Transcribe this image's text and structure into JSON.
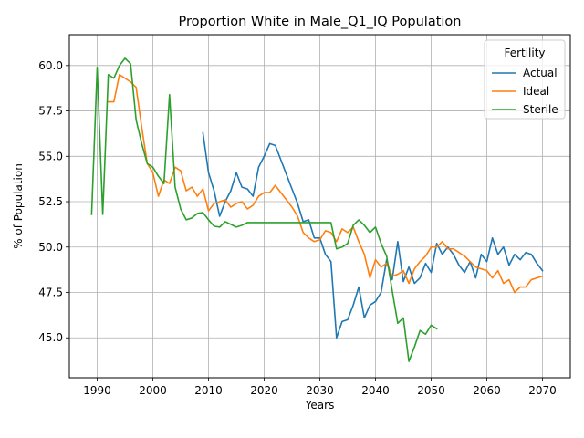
{
  "chart_data": {
    "type": "line",
    "title": "Proportion White in Male_Q1_IQ Population",
    "xlabel": "Years",
    "ylabel": "% of Population",
    "xlim": [
      1985,
      2075
    ],
    "ylim": [
      42.8,
      61.7
    ],
    "xticks": [
      1990,
      2000,
      2010,
      2020,
      2030,
      2040,
      2050,
      2060,
      2070
    ],
    "yticks": [
      45.0,
      47.5,
      50.0,
      52.5,
      55.0,
      57.5,
      60.0
    ],
    "xtick_labels": [
      "1990",
      "2000",
      "2010",
      "2020",
      "2030",
      "2040",
      "2050",
      "2060",
      "2070"
    ],
    "ytick_labels": [
      "45.0",
      "47.5",
      "50.0",
      "52.5",
      "55.0",
      "57.5",
      "60.0"
    ],
    "grid": true,
    "legend": {
      "title": "Fertility",
      "placement": "upper right"
    },
    "series": [
      {
        "name": "Actual",
        "color": "#1f77b4",
        "x": [
          2009,
          2010,
          2011,
          2012,
          2013,
          2014,
          2015,
          2016,
          2017,
          2018,
          2019,
          2020,
          2021,
          2022,
          2023,
          2024,
          2025,
          2026,
          2027,
          2028,
          2029,
          2030,
          2031,
          2032,
          2033,
          2034,
          2035,
          2036,
          2037,
          2038,
          2039,
          2040,
          2041,
          2042,
          2043,
          2044,
          2045,
          2046,
          2047,
          2048,
          2049,
          2050,
          2051,
          2052,
          2053,
          2054,
          2055,
          2056,
          2057,
          2058,
          2059,
          2060,
          2061,
          2062,
          2063,
          2064,
          2065,
          2066,
          2067,
          2068,
          2069,
          2070
        ],
        "y": [
          56.3,
          54.1,
          53.1,
          51.7,
          52.5,
          53.1,
          54.1,
          53.3,
          53.2,
          52.8,
          54.4,
          55.0,
          55.7,
          55.6,
          54.8,
          54.0,
          53.2,
          52.4,
          51.4,
          51.5,
          50.5,
          50.5,
          49.6,
          49.2,
          45.0,
          45.9,
          46.0,
          46.8,
          47.8,
          46.1,
          46.8,
          47.0,
          47.5,
          49.3,
          48.2,
          50.3,
          48.1,
          48.9,
          48.0,
          48.3,
          49.1,
          48.6,
          50.2,
          49.6,
          50.0,
          49.6,
          49.0,
          48.6,
          49.2,
          48.3,
          49.6,
          49.2,
          50.5,
          49.6,
          50.0,
          49.0,
          49.6,
          49.3,
          49.7,
          49.6,
          49.1,
          48.7
        ]
      },
      {
        "name": "Ideal",
        "color": "#ff7f0e",
        "x": [
          1992,
          1993,
          1994,
          1995,
          1996,
          1997,
          1998,
          1999,
          2000,
          2001,
          2002,
          2003,
          2004,
          2005,
          2006,
          2007,
          2008,
          2009,
          2010,
          2011,
          2012,
          2013,
          2014,
          2015,
          2016,
          2017,
          2018,
          2019,
          2020,
          2021,
          2022,
          2023,
          2024,
          2025,
          2026,
          2027,
          2028,
          2029,
          2030,
          2031,
          2032,
          2033,
          2034,
          2035,
          2036,
          2037,
          2038,
          2039,
          2040,
          2041,
          2042,
          2043,
          2044,
          2045,
          2046,
          2047,
          2048,
          2049,
          2050,
          2051,
          2052,
          2053,
          2054,
          2055,
          2056,
          2057,
          2058,
          2059,
          2060,
          2061,
          2062,
          2063,
          2064,
          2065,
          2066,
          2067,
          2068,
          2069,
          2070
        ],
        "y": [
          58.0,
          58.0,
          59.5,
          59.3,
          59.1,
          58.8,
          56.6,
          54.6,
          54.1,
          52.8,
          53.7,
          53.5,
          54.4,
          54.2,
          53.1,
          53.3,
          52.8,
          53.2,
          52.0,
          52.4,
          52.5,
          52.6,
          52.2,
          52.4,
          52.5,
          52.1,
          52.3,
          52.8,
          53.0,
          53.0,
          53.4,
          53.0,
          52.6,
          52.2,
          51.7,
          50.8,
          50.5,
          50.3,
          50.4,
          50.9,
          50.8,
          50.3,
          51.0,
          50.8,
          51.1,
          50.3,
          49.6,
          48.3,
          49.3,
          48.9,
          49.1,
          48.4,
          48.5,
          48.7,
          48.0,
          48.8,
          49.2,
          49.5,
          50.0,
          50.0,
          50.3,
          49.9,
          49.9,
          49.7,
          49.5,
          49.2,
          48.9,
          48.8,
          48.7,
          48.3,
          48.7,
          48.0,
          48.2,
          47.5,
          47.8,
          47.8,
          48.2,
          48.3,
          48.4
        ]
      },
      {
        "name": "Sterile",
        "color": "#2ca02c",
        "x": [
          1989,
          1990,
          1991,
          1992,
          1993,
          1994,
          1995,
          1996,
          1997,
          1998,
          1999,
          2000,
          2001,
          2002,
          2003,
          2004,
          2005,
          2006,
          2007,
          2008,
          2009,
          2010,
          2011,
          2012,
          2013,
          2014,
          2015,
          2016,
          2017,
          2018,
          2019,
          2020,
          2021,
          2022,
          2023,
          2024,
          2025,
          2026,
          2027,
          2028,
          2029,
          2030,
          2031,
          2032,
          2033,
          2034,
          2035,
          2036,
          2037,
          2038,
          2039,
          2040,
          2041,
          2042,
          2043,
          2044,
          2045,
          2046,
          2047,
          2048,
          2049,
          2050,
          2051,
          2052
        ],
        "y": [
          51.8,
          59.9,
          51.8,
          59.5,
          59.3,
          60.0,
          60.4,
          60.1,
          57.0,
          55.7,
          54.6,
          54.4,
          53.9,
          53.5,
          58.4,
          53.3,
          52.1,
          51.5,
          51.6,
          51.85,
          51.9,
          51.5,
          51.15,
          51.1,
          51.4,
          51.25,
          51.1,
          51.2,
          51.35,
          51.35,
          51.35,
          51.35,
          51.35,
          51.35,
          51.35,
          51.35,
          51.35,
          51.35,
          51.35,
          51.35,
          51.35,
          51.35,
          51.35,
          51.35,
          49.9,
          50.0,
          50.2,
          51.2,
          51.5,
          51.2,
          50.8,
          51.1,
          50.2,
          49.5,
          47.6,
          45.8,
          46.1,
          43.7,
          44.5,
          45.4,
          45.2,
          45.7,
          45.5,
          null
        ]
      }
    ]
  }
}
